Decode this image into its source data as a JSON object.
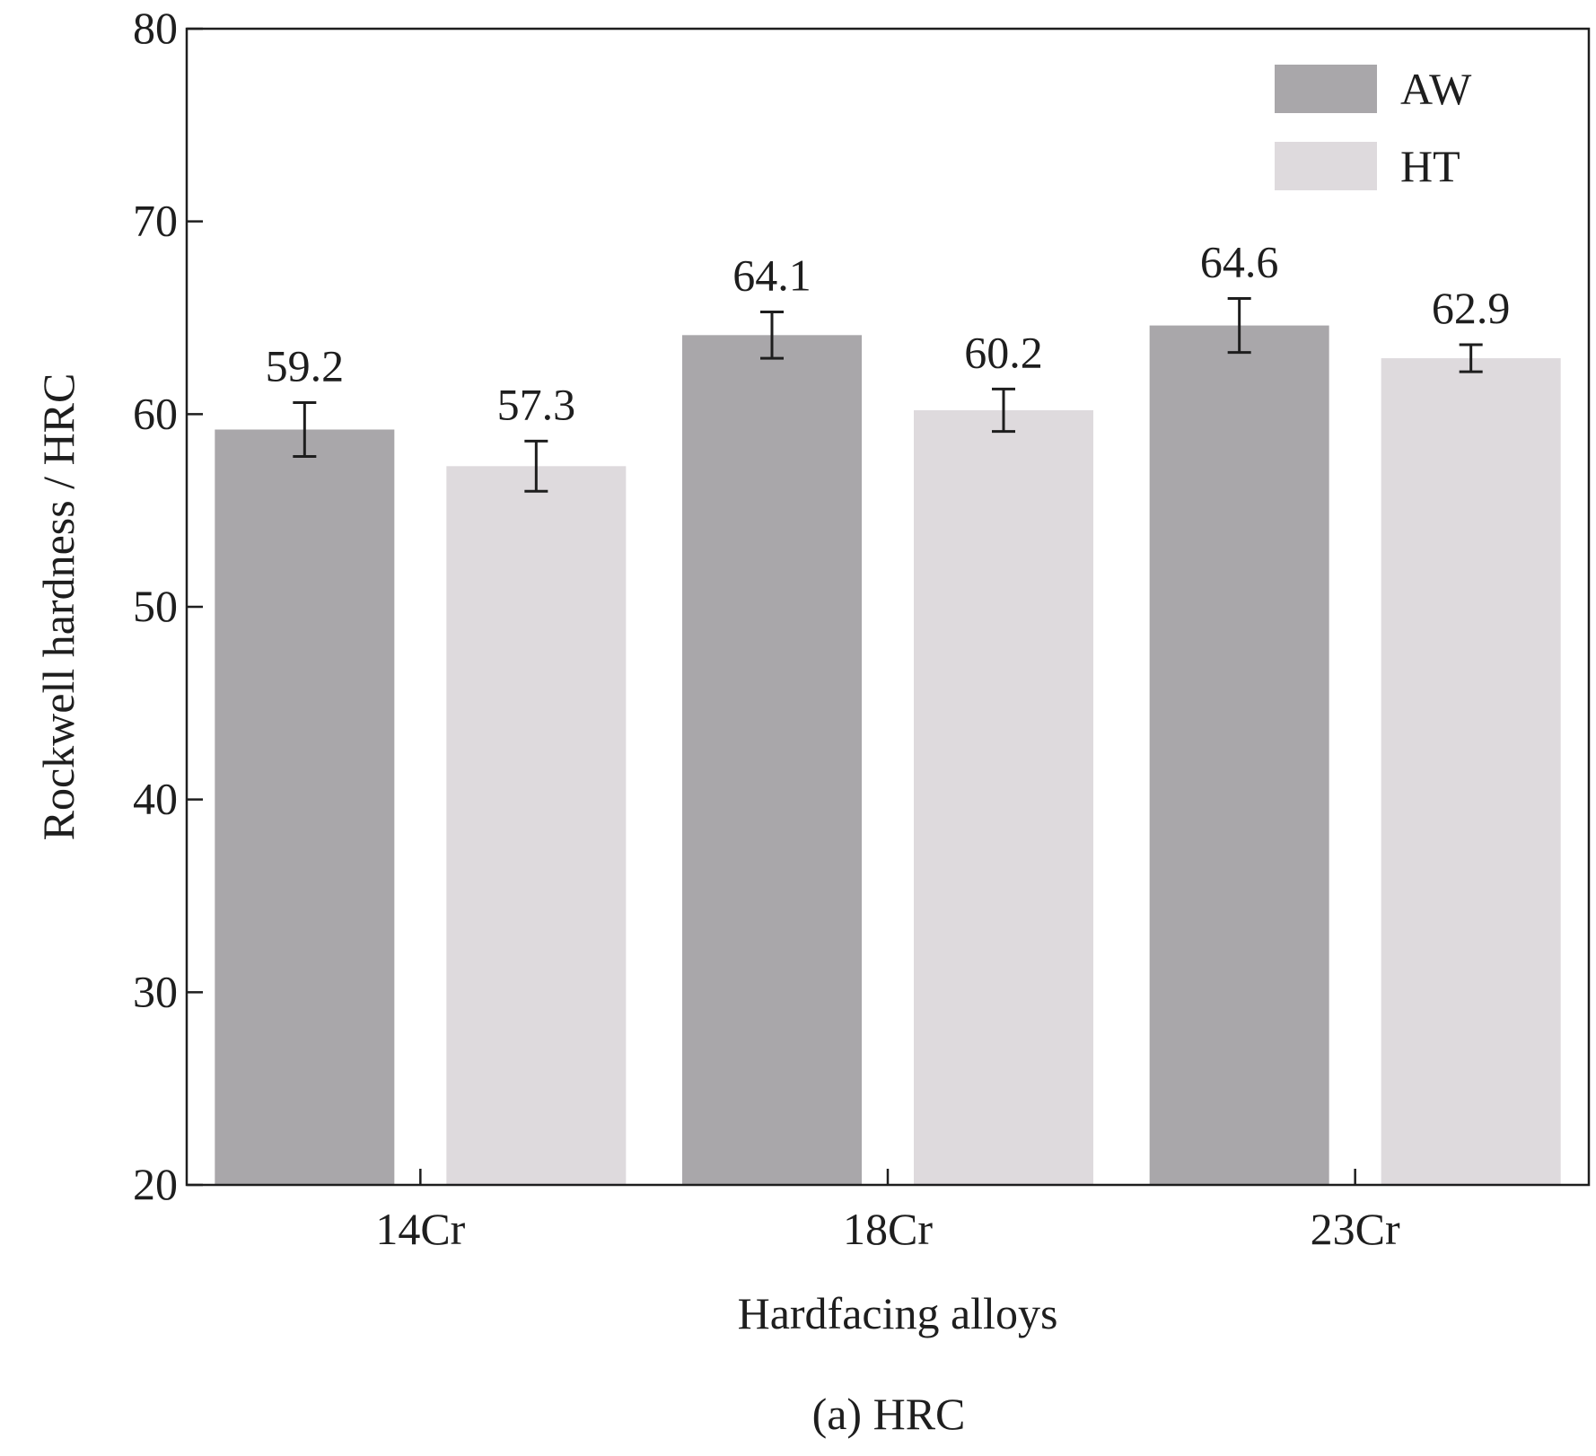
{
  "chart_data": {
    "type": "bar",
    "title": "(a) HRC",
    "xlabel": "Hardfacing alloys",
    "ylabel": "Rockwell hardness / HRC",
    "categories": [
      "14Cr",
      "18Cr",
      "23Cr"
    ],
    "ylim": [
      20,
      80
    ],
    "yticks": [
      20,
      30,
      40,
      50,
      60,
      70,
      80
    ],
    "grid": false,
    "legend_position": "top-right",
    "series": [
      {
        "name": "AW",
        "values": [
          59.2,
          64.1,
          64.6
        ],
        "value_labels": [
          "59.2",
          "64.1",
          "64.6"
        ],
        "error": [
          1.4,
          1.2,
          1.4
        ],
        "color": "#a9a7aa"
      },
      {
        "name": "HT",
        "values": [
          57.3,
          60.2,
          62.9
        ],
        "value_labels": [
          "57.3",
          "60.2",
          "62.9"
        ],
        "error": [
          1.3,
          1.1,
          0.7
        ],
        "color": "#dedadd"
      }
    ]
  }
}
